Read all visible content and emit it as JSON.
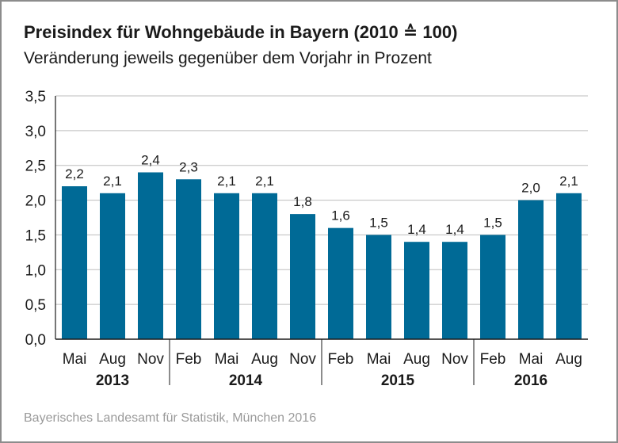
{
  "title": "Preisindex für Wohngebäude in Bayern (2010 ≙ 100)",
  "subtitle": "Veränderung jeweils gegenüber dem Vorjahr in Prozent",
  "source": "Bayerisches Landesamt für Statistik, München 2016",
  "colors": {
    "bar": "#006a96",
    "grid": "#bdbdbd",
    "axis": "#1a1a1a",
    "text": "#1a1a1a"
  },
  "chart_data": {
    "type": "bar",
    "title": "Preisindex für Wohngebäude in Bayern (2010 ≙ 100)",
    "subtitle": "Veränderung jeweils gegenüber dem Vorjahr in Prozent",
    "categories": [
      "Mai",
      "Aug",
      "Nov",
      "Feb",
      "Mai",
      "Aug",
      "Nov",
      "Feb",
      "Mai",
      "Aug",
      "Nov",
      "Feb",
      "Mai",
      "Aug"
    ],
    "values": [
      2.2,
      2.1,
      2.4,
      2.3,
      2.1,
      2.1,
      1.8,
      1.6,
      1.5,
      1.4,
      1.4,
      1.5,
      2.0,
      2.1
    ],
    "value_labels": [
      "2,2",
      "2,1",
      "2,4",
      "2,3",
      "2,1",
      "2,1",
      "1,8",
      "1,6",
      "1,5",
      "1,4",
      "1,4",
      "1,5",
      "2,0",
      "2,1"
    ],
    "groups": [
      {
        "label": "2013",
        "count": 3
      },
      {
        "label": "2014",
        "count": 4
      },
      {
        "label": "2015",
        "count": 4
      },
      {
        "label": "2016",
        "count": 3
      }
    ],
    "ylim": [
      0,
      3.5
    ],
    "yticks": [
      0,
      0.5,
      1.0,
      1.5,
      2.0,
      2.5,
      3.0,
      3.5
    ],
    "ytick_labels": [
      "0,0",
      "0,5",
      "1,0",
      "1,5",
      "2,0",
      "2,5",
      "3,0",
      "3,5"
    ],
    "xlabel": "",
    "ylabel": "",
    "grid": true
  }
}
